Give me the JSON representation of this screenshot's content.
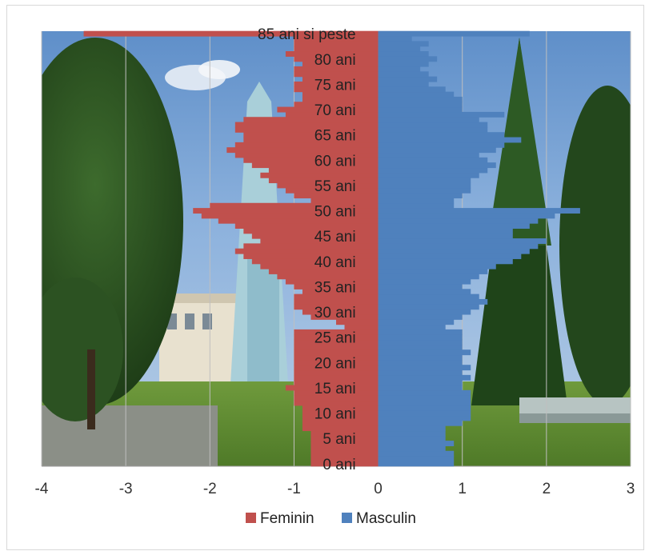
{
  "chart_data": {
    "type": "bar",
    "orientation": "horizontal",
    "title": "",
    "xlabel": "",
    "ylabel": "",
    "xlim": [
      -4,
      3
    ],
    "x_ticks": [
      "-4",
      "-3",
      "-2",
      "-1",
      "0",
      "1",
      "2",
      "3"
    ],
    "x_tick_values": [
      -4,
      -3,
      -2,
      -1,
      0,
      1,
      2,
      3
    ],
    "grid": "vertical",
    "legend": "bottom",
    "background": "photo-of-town-square-with-trees-and-monument",
    "category_labels": [
      "85 ani si peste",
      "80 ani",
      "75 ani",
      "70 ani",
      "65 ani",
      "60 ani",
      "55 ani",
      "50 ani",
      "45 ani",
      "40 ani",
      "35 ani",
      "30 ani",
      "25 ani",
      "20 ani",
      "15 ani",
      "10 ani",
      "5 ani",
      "0 ani"
    ],
    "category_label_ages": [
      85,
      80,
      75,
      70,
      65,
      60,
      55,
      50,
      45,
      40,
      35,
      30,
      25,
      20,
      15,
      10,
      5,
      0
    ],
    "ages": [
      0,
      1,
      2,
      3,
      4,
      5,
      6,
      7,
      8,
      9,
      10,
      11,
      12,
      13,
      14,
      15,
      16,
      17,
      18,
      19,
      20,
      21,
      22,
      23,
      24,
      25,
      26,
      27,
      28,
      29,
      30,
      31,
      32,
      33,
      34,
      35,
      36,
      37,
      38,
      39,
      40,
      41,
      42,
      43,
      44,
      45,
      46,
      47,
      48,
      49,
      50,
      51,
      52,
      53,
      54,
      55,
      56,
      57,
      58,
      59,
      60,
      61,
      62,
      63,
      64,
      65,
      66,
      67,
      68,
      69,
      70,
      71,
      72,
      73,
      74,
      75,
      76,
      77,
      78,
      79,
      80,
      81,
      82,
      83,
      84,
      85
    ],
    "series": [
      {
        "name": "Feminin",
        "color": "#c0504d",
        "values": [
          -0.8,
          -0.8,
          -0.8,
          -0.8,
          -0.8,
          -0.8,
          -0.8,
          -0.9,
          -0.9,
          -0.9,
          -0.9,
          -0.9,
          -1.0,
          -1.0,
          -1.0,
          -1.1,
          -1.0,
          -1.0,
          -1.0,
          -1.0,
          -1.0,
          -1.0,
          -1.0,
          -1.0,
          -1.0,
          -1.0,
          -1.0,
          -0.4,
          -0.5,
          -0.8,
          -0.9,
          -1.0,
          -1.0,
          -1.0,
          -0.9,
          -1.0,
          -1.1,
          -1.2,
          -1.3,
          -1.4,
          -1.5,
          -1.6,
          -1.7,
          -1.6,
          -1.4,
          -1.5,
          -1.6,
          -1.7,
          -1.9,
          -2.1,
          -2.2,
          -2.0,
          -0.8,
          -1.0,
          -1.1,
          -1.2,
          -1.3,
          -1.4,
          -1.3,
          -1.5,
          -1.6,
          -1.7,
          -1.8,
          -1.7,
          -1.6,
          -1.6,
          -1.7,
          -1.7,
          -1.6,
          -1.1,
          -1.2,
          -1.0,
          -0.9,
          -0.9,
          -1.0,
          -1.0,
          -0.9,
          -1.0,
          -1.0,
          -0.9,
          -1.0,
          -1.1,
          -1.0,
          -1.0,
          -1.0,
          -3.5
        ]
      },
      {
        "name": "Masculin",
        "color": "#4f81bd",
        "values": [
          0.9,
          0.9,
          0.9,
          0.8,
          0.9,
          0.8,
          0.8,
          0.8,
          1.0,
          1.1,
          1.1,
          1.1,
          1.1,
          1.1,
          1.1,
          1.0,
          1.0,
          1.1,
          1.0,
          1.1,
          1.0,
          1.0,
          1.1,
          1.0,
          1.0,
          1.0,
          1.0,
          0.8,
          0.9,
          1.0,
          1.1,
          1.2,
          1.3,
          1.2,
          1.1,
          1.0,
          1.1,
          1.2,
          1.3,
          1.4,
          1.6,
          1.7,
          1.8,
          1.9,
          2.0,
          1.6,
          1.6,
          1.8,
          1.9,
          2.1,
          2.4,
          0.9,
          0.9,
          1.0,
          1.1,
          1.1,
          1.1,
          1.2,
          1.3,
          1.4,
          1.3,
          1.2,
          1.4,
          1.5,
          1.7,
          1.5,
          1.3,
          1.3,
          1.2,
          1.5,
          1.0,
          1.0,
          1.0,
          0.9,
          0.8,
          0.6,
          0.7,
          0.6,
          0.5,
          0.6,
          0.7,
          0.6,
          0.5,
          0.6,
          0.4,
          1.8
        ]
      }
    ]
  },
  "legend": {
    "items": [
      {
        "label": "Feminin",
        "color": "#c0504d"
      },
      {
        "label": "Masculin",
        "color": "#4f81bd"
      }
    ]
  }
}
